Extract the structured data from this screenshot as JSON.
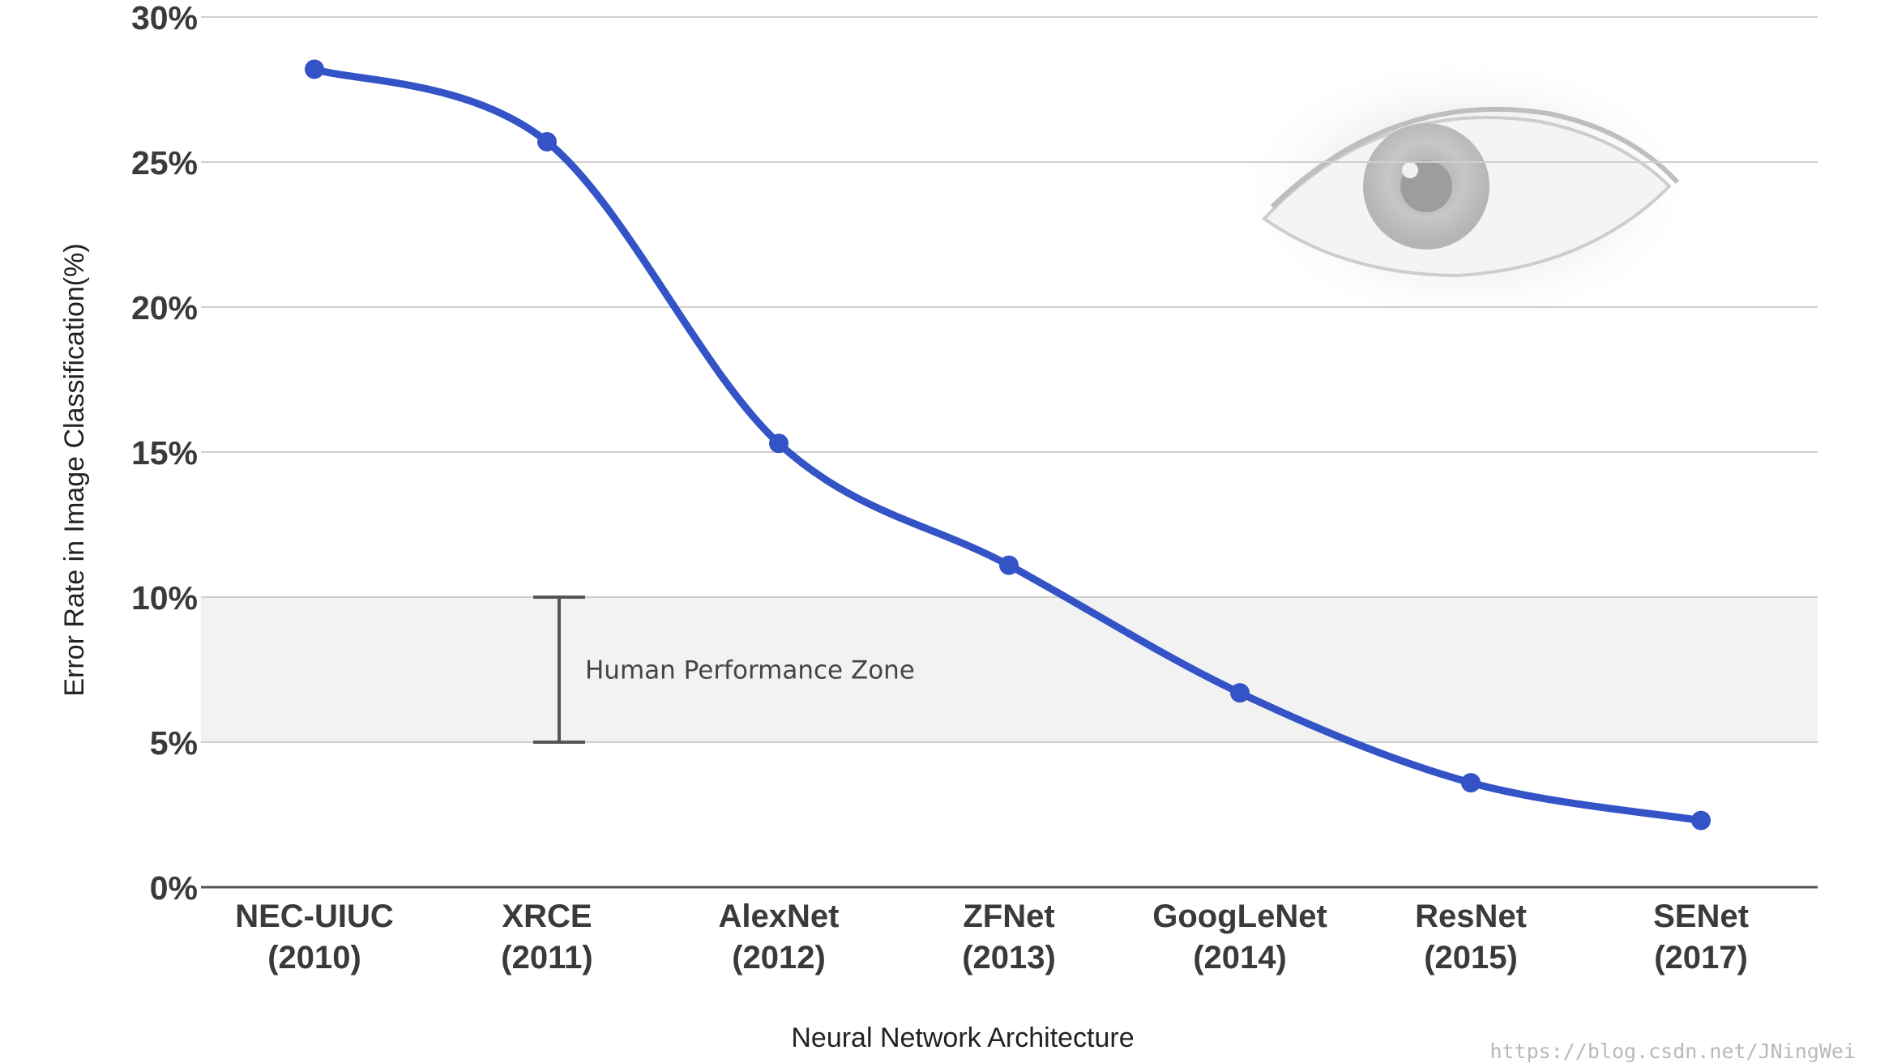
{
  "chart_data": {
    "type": "line",
    "categories": [
      [
        "NEC-UIUC",
        "(2010)"
      ],
      [
        "XRCE",
        "(2011)"
      ],
      [
        "AlexNet",
        "(2012)"
      ],
      [
        "ZFNet",
        "(2013)"
      ],
      [
        "GoogLeNet",
        "(2014)"
      ],
      [
        "ResNet",
        "(2015)"
      ],
      [
        "SENet",
        "(2017)"
      ]
    ],
    "values": [
      28.2,
      25.7,
      15.3,
      11.1,
      6.7,
      3.6,
      2.3
    ],
    "xlabel": "Neural Network Architecture",
    "ylabel": "Error Rate in Image Classification(%)",
    "ylim": [
      0,
      30
    ],
    "yticks": [
      0,
      5,
      10,
      15,
      20,
      25,
      30
    ],
    "ytick_labels": [
      "0%",
      "5%",
      "10%",
      "15%",
      "20%",
      "25%",
      "30%"
    ],
    "grid": true,
    "line_color": "#3353c6",
    "annotations": [
      {
        "text": "Human Performance Zone",
        "y_range": [
          5,
          10
        ]
      }
    ],
    "watermark": "https://blog.csdn.net/JNingWei"
  },
  "colors": {
    "line": "#3353c6",
    "grid": "#cfcfcf",
    "zone_fill": "#f2f2f2",
    "axis": "#555555",
    "text": "#3a3a3a"
  },
  "decorations": {
    "background_image": "eye-photo"
  }
}
